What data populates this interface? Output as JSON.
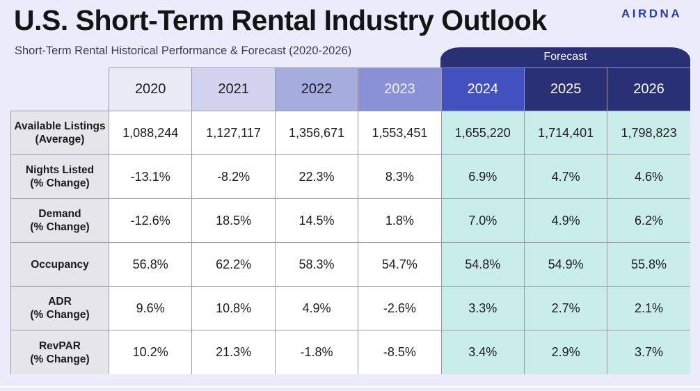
{
  "title": "U.S. Short-Term Rental Industry Outlook",
  "subtitle": "Short-Term Rental Historical Performance & Forecast (2020-2026)",
  "logo": "AIRDNA",
  "forecast_label": "Forecast",
  "colors": {
    "year_headers": [
      "#eaebf7",
      "#d1d3ee",
      "#a7acdf",
      "#8a91d6",
      "#4351be",
      "#2a3076",
      "#2a3076"
    ],
    "forecast_cell": "#c9eeea",
    "history_cell": "#ffffff",
    "row_label_bg": "#e6e6ea"
  },
  "chart_data": {
    "type": "table",
    "title": "U.S. Short-Term Rental Industry Outlook",
    "subtitle": "Short-Term Rental Historical Performance & Forecast (2020-2026)",
    "columns": [
      "2020",
      "2021",
      "2022",
      "2023",
      "2024",
      "2025",
      "2026"
    ],
    "forecast_columns": [
      "2024",
      "2025",
      "2026"
    ],
    "rows": [
      {
        "label": "Available Listings\n(Average)",
        "values": [
          "1,088,244",
          "1,127,117",
          "1,356,671",
          "1,553,451",
          "1,655,220",
          "1,714,401",
          "1,798,823"
        ]
      },
      {
        "label": "Nights Listed\n(% Change)",
        "values": [
          "-13.1%",
          "-8.2%",
          "22.3%",
          "8.3%",
          "6.9%",
          "4.7%",
          "4.6%"
        ]
      },
      {
        "label": "Demand\n(% Change)",
        "values": [
          "-12.6%",
          "18.5%",
          "14.5%",
          "1.8%",
          "7.0%",
          "4.9%",
          "6.2%"
        ]
      },
      {
        "label": "Occupancy",
        "values": [
          "56.8%",
          "62.2%",
          "58.3%",
          "54.7%",
          "54.8%",
          "54.9%",
          "55.8%"
        ]
      },
      {
        "label": "ADR\n(% Change)",
        "values": [
          "9.6%",
          "10.8%",
          "4.9%",
          "-2.6%",
          "3.3%",
          "2.7%",
          "2.1%"
        ]
      },
      {
        "label": "RevPAR\n(% Change)",
        "values": [
          "10.2%",
          "21.3%",
          "-1.8%",
          "-8.5%",
          "3.4%",
          "2.9%",
          "3.7%"
        ]
      }
    ]
  }
}
